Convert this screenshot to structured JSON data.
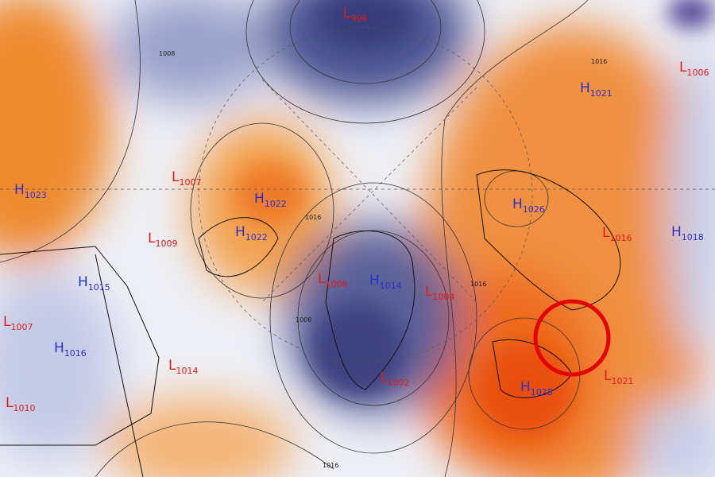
{
  "centers": [
    {
      "letter": "L",
      "value": "996"
    },
    {
      "letter": "H",
      "value": "1023"
    },
    {
      "letter": "L",
      "value": "1007"
    },
    {
      "letter": "H",
      "value": "1022"
    },
    {
      "letter": "H",
      "value": "1022"
    },
    {
      "letter": "L",
      "value": "1009"
    },
    {
      "letter": "H",
      "value": "1015"
    },
    {
      "letter": "L",
      "value": "1007"
    },
    {
      "letter": "H",
      "value": "1016"
    },
    {
      "letter": "L",
      "value": "1014"
    },
    {
      "letter": "L",
      "value": "1010"
    },
    {
      "letter": "L",
      "value": "1006"
    },
    {
      "letter": "H",
      "value": "1014"
    },
    {
      "letter": "L",
      "value": "1004"
    },
    {
      "letter": "L",
      "value": "1002"
    },
    {
      "letter": "H",
      "value": "1026"
    },
    {
      "letter": "H",
      "value": "1021"
    },
    {
      "letter": "L",
      "value": "1006"
    },
    {
      "letter": "L",
      "value": "1016"
    },
    {
      "letter": "H",
      "value": "1018"
    },
    {
      "letter": "H",
      "value": "1028"
    },
    {
      "letter": "L",
      "value": "1021"
    }
  ],
  "contour_labels": [
    "1008",
    "1016",
    "1016",
    "1008",
    "1016",
    "1016"
  ]
}
